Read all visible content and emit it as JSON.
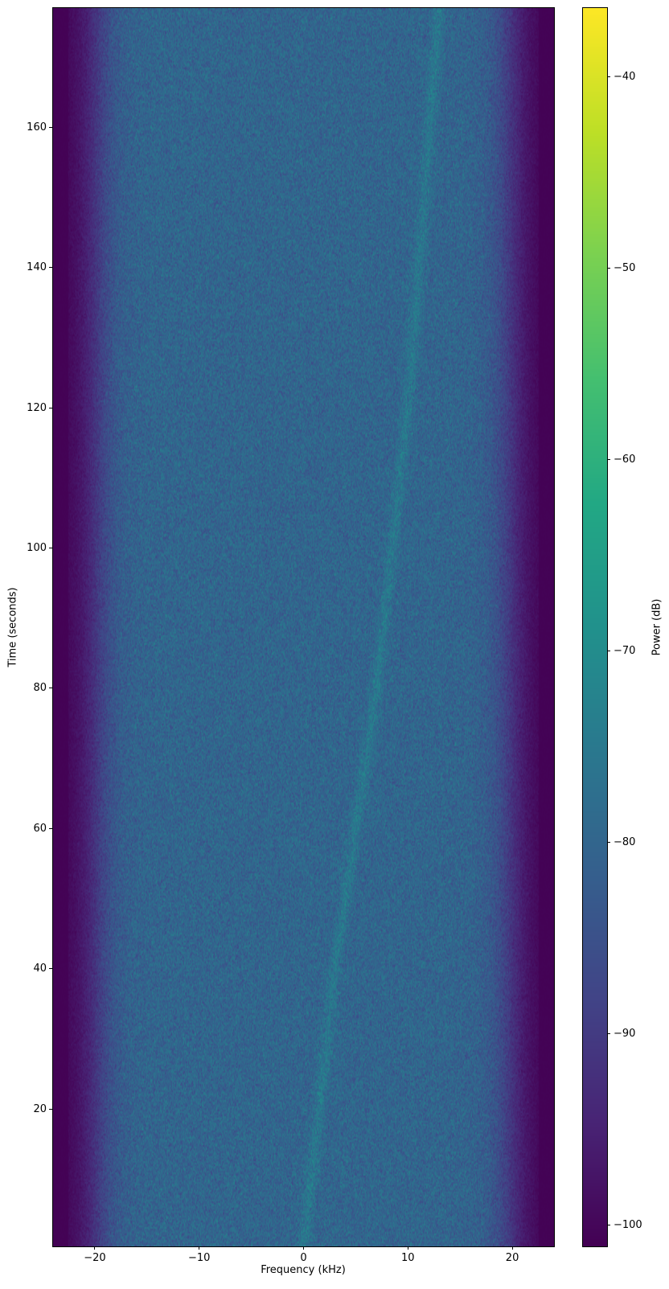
{
  "chart_data": {
    "type": "heatmap",
    "kind": "spectrogram",
    "title": "",
    "xlabel": "Frequency (kHz)",
    "ylabel": "Time (seconds)",
    "xlim": [
      -24,
      24
    ],
    "ylim": [
      0.4,
      177
    ],
    "xticks": [
      -20,
      -10,
      0,
      10,
      20
    ],
    "xtick_labels": [
      "−20",
      "−10",
      "0",
      "10",
      "20"
    ],
    "yticks": [
      20,
      40,
      60,
      80,
      100,
      120,
      140,
      160
    ],
    "ytick_labels": [
      "20",
      "40",
      "60",
      "80",
      "100",
      "120",
      "140",
      "160"
    ],
    "colormap": "viridis",
    "colorbar": {
      "label": "Power (dB)",
      "clim": [
        -101.1,
        -36.4
      ],
      "ticks": [
        -100,
        -90,
        -80,
        -70,
        -60,
        -50,
        -40
      ],
      "tick_labels": [
        "−100",
        "−90",
        "−80",
        "−70",
        "−60",
        "−50",
        "−40"
      ]
    },
    "noise_floor_db": -80,
    "band_edge_khz": 22,
    "out_of_band_db": -101,
    "drifting_tone": {
      "power_db": -75,
      "points": [
        [
          0,
          0
        ],
        [
          3,
          40
        ],
        [
          7,
          80
        ],
        [
          10,
          120
        ],
        [
          13,
          177
        ]
      ]
    },
    "grid": false
  }
}
